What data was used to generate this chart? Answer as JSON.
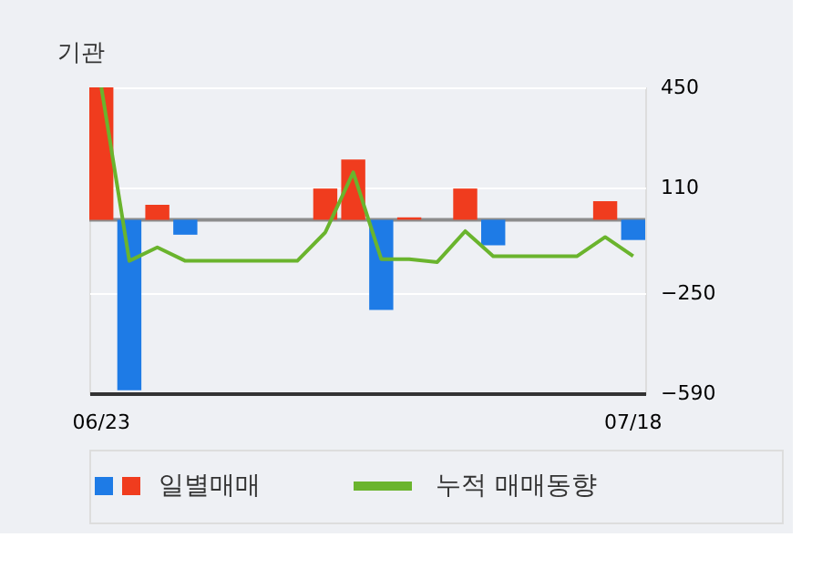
{
  "chart_data": {
    "type": "bar",
    "title": "기관",
    "categories": [
      "06/23",
      null,
      null,
      null,
      null,
      null,
      null,
      null,
      null,
      null,
      null,
      null,
      null,
      null,
      null,
      null,
      null,
      null,
      null,
      "07/18"
    ],
    "series": [
      {
        "name": "일별매매",
        "colors": [
          "#f03c1e",
          "#1e7be6",
          "#f03c1e",
          "#1e7be6",
          "#f03c1e",
          "#f03c1e",
          "#f03c1e",
          "#f03c1e",
          "#f03c1e",
          "#f03c1e",
          "#1e7be6",
          "#f03c1e",
          "#f03c1e",
          "#f03c1e",
          "#1e7be6",
          "#f03c1e",
          "#f03c1e",
          "#f03c1e",
          "#f03c1e",
          "#1e7be6"
        ],
        "values": [
          450,
          -580,
          51,
          -51,
          0,
          0,
          0,
          0,
          106,
          205,
          -307,
          8,
          0,
          106,
          -87,
          0,
          0,
          0,
          63,
          -69
        ]
      },
      {
        "name": "누적 매매동향",
        "type": "line",
        "color": "#6ab42d",
        "values": [
          450,
          -140,
          -94,
          -140,
          -140,
          -140,
          -140,
          -140,
          -43,
          161,
          -134,
          -134,
          -144,
          -39,
          -124,
          -124,
          -124,
          -124,
          -59,
          -124
        ]
      }
    ],
    "ylim": [
      -590,
      450
    ],
    "yticks": [
      450,
      110,
      -250,
      -590
    ],
    "grid": "y",
    "legend": "bottom"
  }
}
